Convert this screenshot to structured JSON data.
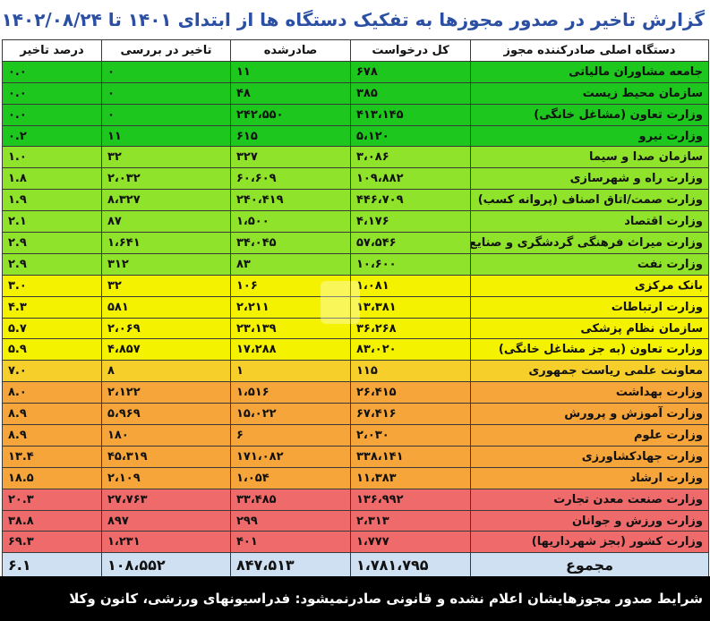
{
  "title": "گزارش تاخیر در صدور مجوزها به تفکیک دستگاه ها از ابتدای ۱۴۰۱ تا ۱۴۰۲/۰۸/۲۴",
  "headers": [
    "دستگاه اصلی صادرکننده مجوز",
    "کل درخواست",
    "صادرشده",
    "تاخیر در بررسی",
    "درصد تاخیر"
  ],
  "colors": {
    "green_dark": "#1ec71e",
    "green_light": "#8fe32b",
    "yellow": "#f5f200",
    "orange_light": "#f7cf2a",
    "orange": "#f6a53a",
    "red": "#ef6b6b",
    "total_bg": "#cfe0f3"
  },
  "rows": [
    {
      "name": "جامعه مشاوران مالیاتی",
      "total": "۶۷۸",
      "issued": "۱۱",
      "delay": "۰",
      "percent": "۰.۰",
      "color": "#1ec71e"
    },
    {
      "name": "سازمان محیط زیست",
      "total": "۳۸۵",
      "issued": "۴۸",
      "delay": "۰",
      "percent": "۰.۰",
      "color": "#1ec71e"
    },
    {
      "name": "وزارت تعاون (مشاغل خانگی)",
      "total": "۴۱۳،۱۴۵",
      "issued": "۲۴۲،۵۵۰",
      "delay": "۰",
      "percent": "۰.۰",
      "color": "#1ec71e"
    },
    {
      "name": "وزارت نیرو",
      "total": "۵،۱۲۰",
      "issued": "۶۱۵",
      "delay": "۱۱",
      "percent": "۰.۲",
      "color": "#1ec71e"
    },
    {
      "name": "سازمان صدا و سیما",
      "total": "۳،۰۸۶",
      "issued": "۳۲۷",
      "delay": "۳۲",
      "percent": "۱.۰",
      "color": "#8fe32b"
    },
    {
      "name": "وزارت راه و شهرسازی",
      "total": "۱۰۹،۸۸۲",
      "issued": "۶۰،۶۰۹",
      "delay": "۲،۰۳۲",
      "percent": "۱.۸",
      "color": "#8fe32b"
    },
    {
      "name": "وزارت صمت/اتاق اصناف (پروانه کسب)",
      "total": "۴۴۶،۷۰۹",
      "issued": "۲۴۰،۴۱۹",
      "delay": "۸،۳۲۷",
      "percent": "۱.۹",
      "color": "#8fe32b"
    },
    {
      "name": "وزارت اقتصاد",
      "total": "۴،۱۷۶",
      "issued": "۱،۵۰۰",
      "delay": "۸۷",
      "percent": "۲.۱",
      "color": "#8fe32b"
    },
    {
      "name": "وزارت میراث فرهنگی گردشگری و صنایع دستی",
      "total": "۵۷،۵۴۶",
      "issued": "۳۴،۰۴۵",
      "delay": "۱،۶۴۱",
      "percent": "۲.۹",
      "color": "#8fe32b"
    },
    {
      "name": "وزارت نفت",
      "total": "۱۰،۶۰۰",
      "issued": "۸۳",
      "delay": "۳۱۲",
      "percent": "۲.۹",
      "color": "#8fe32b"
    },
    {
      "name": "بانک مرکزی",
      "total": "۱،۰۸۱",
      "issued": "۱۰۶",
      "delay": "۳۲",
      "percent": "۳.۰",
      "color": "#f5f200"
    },
    {
      "name": "وزارت ارتباطات",
      "total": "۱۳،۳۸۱",
      "issued": "۲،۲۱۱",
      "delay": "۵۸۱",
      "percent": "۴.۳",
      "color": "#f5f200"
    },
    {
      "name": "سازمان نظام پزشکی",
      "total": "۳۶،۲۶۸",
      "issued": "۲۳،۱۳۹",
      "delay": "۲،۰۶۹",
      "percent": "۵.۷",
      "color": "#f5f200"
    },
    {
      "name": "وزارت تعاون (به جز مشاغل خانگی)",
      "total": "۸۳،۰۲۰",
      "issued": "۱۷،۲۸۸",
      "delay": "۴،۸۵۷",
      "percent": "۵.۹",
      "color": "#f5f200"
    },
    {
      "name": "معاونت علمی ریاست جمهوری",
      "total": "۱۱۵",
      "issued": "۱",
      "delay": "۸",
      "percent": "۷.۰",
      "color": "#f7cf2a"
    },
    {
      "name": "وزارت بهداشت",
      "total": "۲۶،۴۱۵",
      "issued": "۱،۵۱۶",
      "delay": "۲،۱۲۲",
      "percent": "۸.۰",
      "color": "#f6a53a"
    },
    {
      "name": "وزارت آموزش و پرورش",
      "total": "۶۷،۴۱۶",
      "issued": "۱۵،۰۲۲",
      "delay": "۵،۹۶۹",
      "percent": "۸.۹",
      "color": "#f6a53a"
    },
    {
      "name": "وزارت علوم",
      "total": "۲،۰۳۰",
      "issued": "۶",
      "delay": "۱۸۰",
      "percent": "۸.۹",
      "color": "#f6a53a"
    },
    {
      "name": "وزارت جهادکشاورزی",
      "total": "۳۳۸،۱۴۱",
      "issued": "۱۷۱،۰۸۲",
      "delay": "۴۵،۳۱۹",
      "percent": "۱۳.۴",
      "color": "#f6a53a"
    },
    {
      "name": "وزارت ارشاد",
      "total": "۱۱،۳۸۳",
      "issued": "۱،۰۵۴",
      "delay": "۲،۱۰۹",
      "percent": "۱۸.۵",
      "color": "#f6a53a"
    },
    {
      "name": "وزارت صنعت معدن تجارت",
      "total": "۱۳۶،۹۹۲",
      "issued": "۳۳،۴۸۵",
      "delay": "۲۷،۷۶۳",
      "percent": "۲۰.۳",
      "color": "#ef6b6b"
    },
    {
      "name": "وزارت ورزش و جوانان",
      "total": "۲،۳۱۳",
      "issued": "۲۹۹",
      "delay": "۸۹۷",
      "percent": "۳۸.۸",
      "color": "#ef6b6b"
    },
    {
      "name": "وزارت کشور (بجز شهرداریها)",
      "total": "۱،۷۷۷",
      "issued": "۴۰۱",
      "delay": "۱،۲۳۱",
      "percent": "۶۹.۳",
      "color": "#ef6b6b"
    }
  ],
  "total_row": {
    "name": "مجموع",
    "total": "۱،۷۸۱،۷۹۵",
    "issued": "۸۴۷،۵۱۳",
    "delay": "۱۰۸،۵۵۲",
    "percent": "۶.۱"
  },
  "footer": "شرایط صدور مجوزهایشان اعلام نشده و قانونی صادرنمیشود: فدراسیونهای ورزشی، کانون وکلا"
}
